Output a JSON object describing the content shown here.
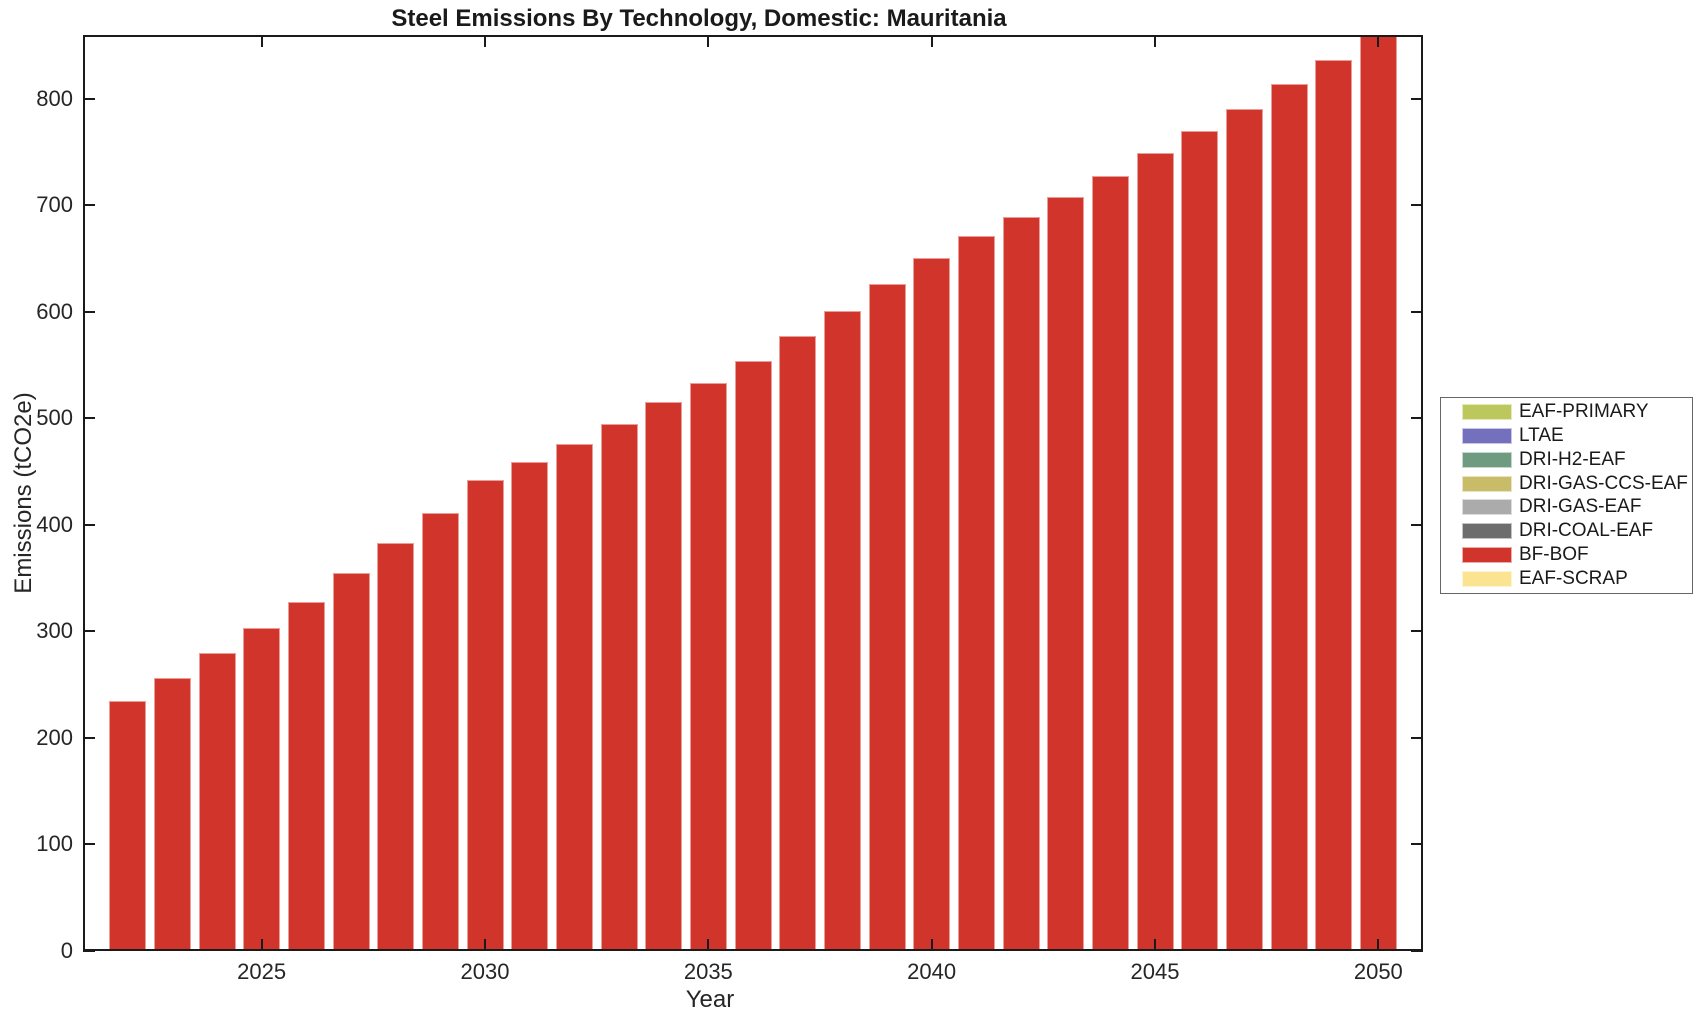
{
  "chart_data": {
    "type": "bar",
    "title": "Steel Emissions By Technology, Domestic: Mauritania",
    "xlabel": "Year",
    "ylabel": "Emissions (tCO2e)",
    "xlim": [
      2021,
      2051
    ],
    "ylim": [
      0,
      860
    ],
    "x_ticks": [
      2025,
      2030,
      2035,
      2040,
      2045,
      2050
    ],
    "y_ticks": [
      0,
      100,
      200,
      300,
      400,
      500,
      600,
      700,
      800
    ],
    "grid": false,
    "legend_position": "right-outside",
    "years": [
      2022,
      2023,
      2024,
      2025,
      2026,
      2027,
      2028,
      2029,
      2030,
      2031,
      2032,
      2033,
      2034,
      2035,
      2036,
      2037,
      2038,
      2039,
      2040,
      2041,
      2042,
      2043,
      2044,
      2045,
      2046,
      2047,
      2048,
      2049,
      2050
    ],
    "series": [
      {
        "name": "BF-BOF",
        "color": "#D1342B",
        "values": [
          235,
          256,
          280,
          303,
          328,
          355,
          383,
          411,
          442,
          459,
          476,
          495,
          515,
          533,
          554,
          577,
          601,
          626,
          651,
          671,
          689,
          708,
          728,
          749,
          770,
          791,
          814,
          837,
          859
        ]
      }
    ],
    "legend": [
      {
        "label": "EAF-PRIMARY",
        "color": "#BCC85C"
      },
      {
        "label": "LTAE",
        "color": "#7470BD"
      },
      {
        "label": "DRI-H2-EAF",
        "color": "#6F9C80"
      },
      {
        "label": "DRI-GAS-CCS-EAF",
        "color": "#C9BC69"
      },
      {
        "label": "DRI-GAS-EAF",
        "color": "#ABABAB"
      },
      {
        "label": "DRI-COAL-EAF",
        "color": "#6D6D6D"
      },
      {
        "label": "BF-BOF",
        "color": "#D1342B"
      },
      {
        "label": "EAF-SCRAP",
        "color": "#FBE491"
      }
    ],
    "colors": {
      "axis": "#1A1A1A",
      "text": "#262626",
      "background": "#FFFFFF"
    }
  }
}
